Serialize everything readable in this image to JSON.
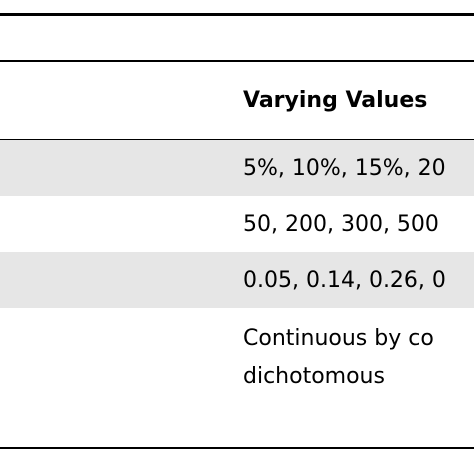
{
  "table": {
    "header": "Varying Values",
    "rows": [
      "5%, 10%, 15%, 20",
      "50, 200, 300, 500",
      "0.05, 0.14, 0.26, 0",
      [
        "Continuous by co",
        "dichotomous"
      ]
    ]
  }
}
